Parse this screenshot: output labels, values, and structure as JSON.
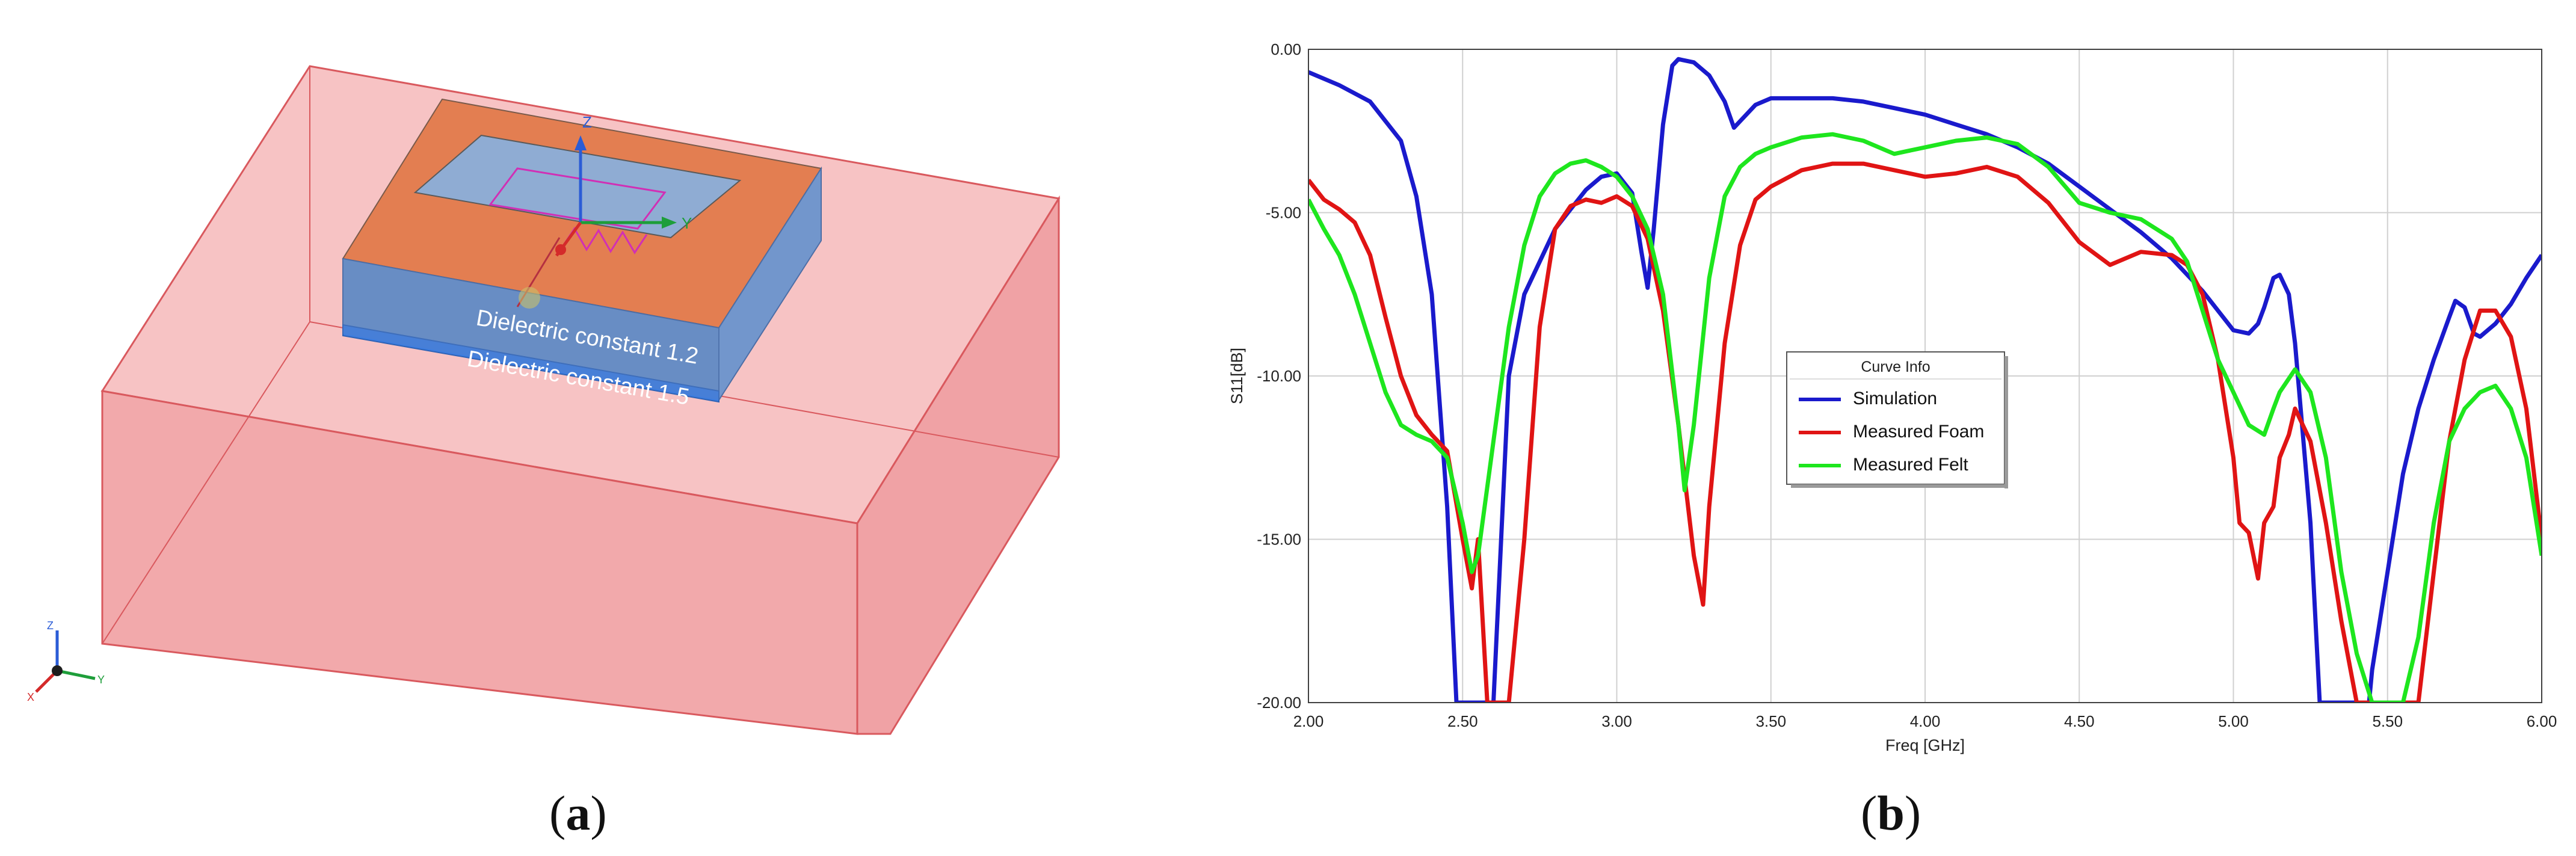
{
  "panel_a": {
    "caption_letter": "a",
    "labels": {
      "dielectric_top": "Dielectric constant 1.2",
      "dielectric_bottom": "Dielectric constant 1.5"
    },
    "axes_labels": {
      "z": "Z",
      "y": "Y",
      "x": "X"
    },
    "colors": {
      "air_box": "#f2a9ab",
      "air_edge": "#d9595e",
      "substrate_top": "#7d9ec9",
      "substrate_orange": "#e37e51",
      "patch_outline": "#d12fb5"
    }
  },
  "panel_b": {
    "caption_letter": "b",
    "legend_title": "Curve Info"
  },
  "chart_data": {
    "type": "line",
    "title": "",
    "xlabel": "Freq [GHz]",
    "ylabel": "S11[dB]",
    "xlim": [
      2.0,
      6.0
    ],
    "ylim": [
      -20.0,
      0.0
    ],
    "x_ticks": [
      "2.00",
      "2.50",
      "3.00",
      "3.50",
      "4.00",
      "4.50",
      "5.00",
      "5.50",
      "6.00"
    ],
    "y_ticks": [
      "0.00",
      "-5.00",
      "-10.00",
      "-15.00",
      "-20.00"
    ],
    "grid": true,
    "legend_position": "center",
    "series": [
      {
        "name": "Simulation",
        "color": "#1a1acc",
        "x": [
          2.0,
          2.1,
          2.2,
          2.3,
          2.35,
          2.4,
          2.45,
          2.48,
          2.5,
          2.55,
          2.6,
          2.65,
          2.7,
          2.8,
          2.9,
          2.95,
          3.0,
          3.05,
          3.08,
          3.1,
          3.12,
          3.15,
          3.18,
          3.2,
          3.25,
          3.3,
          3.35,
          3.38,
          3.4,
          3.45,
          3.5,
          3.6,
          3.7,
          3.8,
          3.9,
          4.0,
          4.1,
          4.2,
          4.3,
          4.4,
          4.5,
          4.6,
          4.7,
          4.8,
          4.9,
          5.0,
          5.05,
          5.08,
          5.1,
          5.13,
          5.15,
          5.18,
          5.2,
          5.25,
          5.28,
          5.3,
          5.4,
          5.44,
          5.45,
          5.5,
          5.55,
          5.6,
          5.65,
          5.7,
          5.72,
          5.75,
          5.78,
          5.8,
          5.85,
          5.9,
          5.95,
          6.0
        ],
        "y": [
          -0.7,
          -1.1,
          -1.6,
          -2.8,
          -4.5,
          -7.5,
          -14.0,
          -20.0,
          -20.0,
          -20.0,
          -20.0,
          -10.0,
          -7.5,
          -5.5,
          -4.3,
          -3.9,
          -3.8,
          -4.4,
          -6.2,
          -7.3,
          -5.5,
          -2.3,
          -0.5,
          -0.3,
          -0.4,
          -0.8,
          -1.6,
          -2.4,
          -2.2,
          -1.7,
          -1.5,
          -1.5,
          -1.5,
          -1.6,
          -1.8,
          -2.0,
          -2.3,
          -2.6,
          -3.0,
          -3.5,
          -4.2,
          -4.9,
          -5.6,
          -6.4,
          -7.4,
          -8.6,
          -8.7,
          -8.4,
          -7.9,
          -7.0,
          -6.9,
          -7.5,
          -9.0,
          -14.5,
          -20.0,
          -20.0,
          -20.0,
          -20.0,
          -19.0,
          -16.0,
          -13.0,
          -11.0,
          -9.5,
          -8.2,
          -7.7,
          -7.9,
          -8.7,
          -8.8,
          -8.4,
          -7.8,
          -7.0,
          -6.3
        ]
      },
      {
        "name": "Measured Foam",
        "color": "#e01414",
        "x": [
          2.0,
          2.05,
          2.1,
          2.15,
          2.2,
          2.25,
          2.3,
          2.35,
          2.4,
          2.45,
          2.5,
          2.53,
          2.55,
          2.58,
          2.6,
          2.62,
          2.65,
          2.7,
          2.75,
          2.8,
          2.85,
          2.9,
          2.95,
          3.0,
          3.05,
          3.1,
          3.15,
          3.2,
          3.25,
          3.28,
          3.3,
          3.35,
          3.4,
          3.45,
          3.5,
          3.6,
          3.7,
          3.8,
          3.9,
          4.0,
          4.1,
          4.2,
          4.3,
          4.4,
          4.5,
          4.6,
          4.7,
          4.8,
          4.85,
          4.9,
          4.95,
          5.0,
          5.02,
          5.05,
          5.08,
          5.1,
          5.13,
          5.15,
          5.18,
          5.2,
          5.25,
          5.3,
          5.35,
          5.4,
          5.45,
          5.5,
          5.55,
          5.6,
          5.65,
          5.7,
          5.75,
          5.8,
          5.85,
          5.9,
          5.95,
          6.0
        ],
        "y": [
          -4.0,
          -4.6,
          -4.9,
          -5.3,
          -6.3,
          -8.2,
          -10.0,
          -11.2,
          -11.8,
          -12.3,
          -15.0,
          -16.5,
          -15.0,
          -20.0,
          -20.0,
          -20.0,
          -20.0,
          -15.0,
          -8.5,
          -5.5,
          -4.8,
          -4.6,
          -4.7,
          -4.5,
          -4.8,
          -5.8,
          -8.0,
          -11.5,
          -15.5,
          -17.0,
          -14.0,
          -9.0,
          -6.0,
          -4.6,
          -4.2,
          -3.7,
          -3.5,
          -3.5,
          -3.7,
          -3.9,
          -3.8,
          -3.6,
          -3.9,
          -4.7,
          -5.9,
          -6.6,
          -6.2,
          -6.3,
          -6.6,
          -7.5,
          -9.5,
          -12.5,
          -14.5,
          -14.8,
          -16.2,
          -14.5,
          -14.0,
          -12.5,
          -11.8,
          -11.0,
          -12.0,
          -14.5,
          -17.5,
          -20.0,
          -20.0,
          -20.0,
          -20.0,
          -20.0,
          -16.0,
          -12.0,
          -9.5,
          -8.0,
          -8.0,
          -8.8,
          -11.0,
          -15.0
        ]
      },
      {
        "name": "Measured Felt",
        "color": "#1ee61e",
        "x": [
          2.0,
          2.05,
          2.1,
          2.15,
          2.2,
          2.25,
          2.3,
          2.35,
          2.4,
          2.45,
          2.5,
          2.53,
          2.55,
          2.6,
          2.65,
          2.7,
          2.75,
          2.8,
          2.85,
          2.9,
          2.95,
          3.0,
          3.05,
          3.1,
          3.15,
          3.2,
          3.22,
          3.25,
          3.3,
          3.35,
          3.4,
          3.45,
          3.5,
          3.6,
          3.7,
          3.8,
          3.9,
          4.0,
          4.1,
          4.2,
          4.3,
          4.4,
          4.5,
          4.6,
          4.7,
          4.8,
          4.85,
          4.9,
          4.95,
          5.0,
          5.05,
          5.1,
          5.13,
          5.15,
          5.2,
          5.25,
          5.3,
          5.35,
          5.4,
          5.45,
          5.5,
          5.55,
          5.6,
          5.65,
          5.7,
          5.75,
          5.8,
          5.85,
          5.9,
          5.95,
          6.0
        ],
        "y": [
          -4.6,
          -5.5,
          -6.3,
          -7.5,
          -9.0,
          -10.5,
          -11.5,
          -11.8,
          -12.0,
          -12.5,
          -14.5,
          -16.0,
          -15.5,
          -12.0,
          -8.5,
          -6.0,
          -4.5,
          -3.8,
          -3.5,
          -3.4,
          -3.6,
          -3.9,
          -4.5,
          -5.5,
          -7.5,
          -11.5,
          -13.5,
          -11.5,
          -7.0,
          -4.5,
          -3.6,
          -3.2,
          -3.0,
          -2.7,
          -2.6,
          -2.8,
          -3.2,
          -3.0,
          -2.8,
          -2.7,
          -2.9,
          -3.6,
          -4.7,
          -5.0,
          -5.2,
          -5.8,
          -6.5,
          -8.0,
          -9.5,
          -10.5,
          -11.5,
          -11.8,
          -11.0,
          -10.5,
          -9.8,
          -10.5,
          -12.5,
          -16.0,
          -18.5,
          -20.0,
          -20.0,
          -20.0,
          -18.0,
          -14.5,
          -12.0,
          -11.0,
          -10.5,
          -10.3,
          -11.0,
          -12.5,
          -15.5
        ]
      }
    ]
  }
}
